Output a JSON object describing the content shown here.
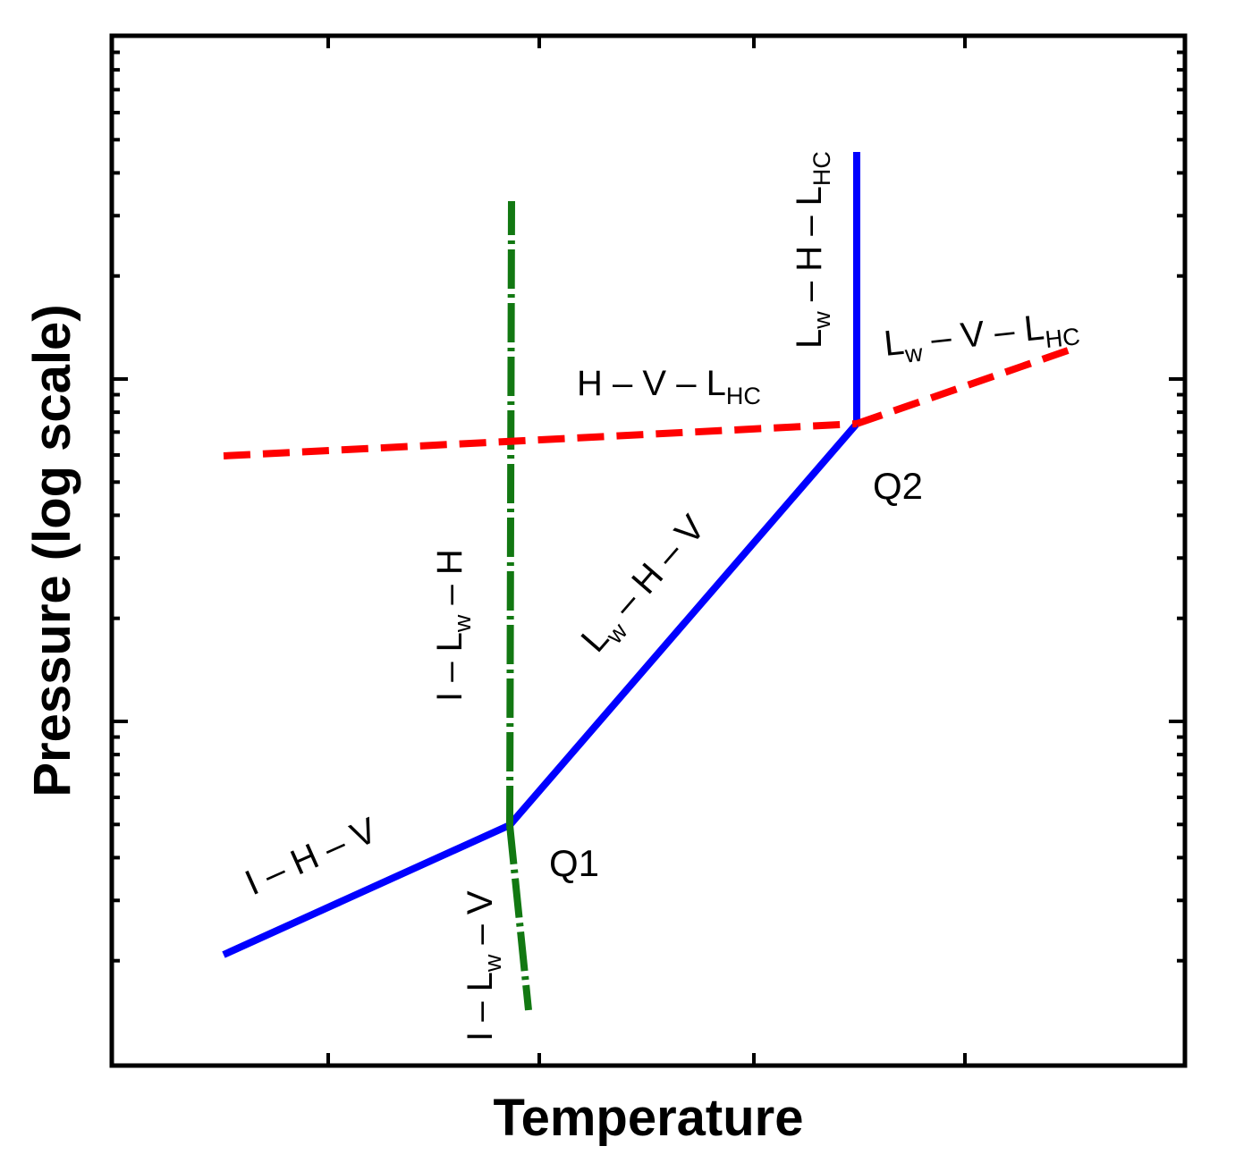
{
  "chart_data": {
    "type": "line",
    "title": "",
    "xlabel": "Temperature",
    "ylabel": "Pressure (log scale)",
    "y_scale": "log",
    "grid": false,
    "legend": "none",
    "x_ticks": "unlabeled",
    "y_ticks": "unlabeled",
    "points": [
      {
        "id": "Q1",
        "label": "Q1"
      },
      {
        "id": "Q2",
        "label": "Q2"
      }
    ],
    "curves": [
      {
        "id": "i-h-v",
        "parts": [
          "I",
          "H",
          "V"
        ],
        "style": "solid",
        "color": "#0000ff"
      },
      {
        "id": "lw-h-v",
        "parts": [
          "L",
          "w",
          "H",
          "V"
        ],
        "style": "solid",
        "color": "#0000ff"
      },
      {
        "id": "lw-h-lhc",
        "parts": [
          "L",
          "w",
          "H",
          "L",
          "HC"
        ],
        "style": "solid",
        "color": "#0000ff"
      },
      {
        "id": "i-lw-h",
        "parts": [
          "I",
          "L",
          "w",
          "H"
        ],
        "style": "dash-dot",
        "color": "#127812"
      },
      {
        "id": "i-lw-v",
        "parts": [
          "I",
          "L",
          "w",
          "V"
        ],
        "style": "dash-dot",
        "color": "#127812"
      },
      {
        "id": "h-v-lhc",
        "parts": [
          "H",
          "V",
          "L",
          "HC"
        ],
        "style": "dashed",
        "color": "#ff0000"
      },
      {
        "id": "lw-v-lhc",
        "parts": [
          "L",
          "w",
          "V",
          "L",
          "HC"
        ],
        "style": "dashed",
        "color": "#ff0000"
      }
    ],
    "dash": "–"
  }
}
